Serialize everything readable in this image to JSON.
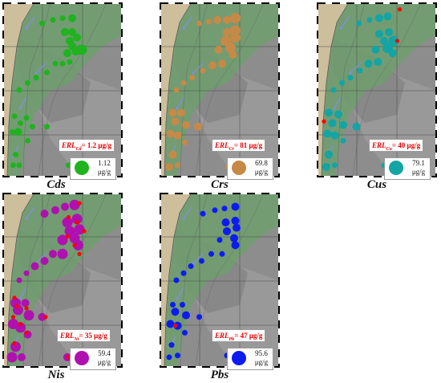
{
  "chart_data": [
    {
      "type": "scatter",
      "panel_label": "Cds",
      "erl_prefix": "ERL",
      "erl_sub": "Cd",
      "erl_value": "= 1.2 μg/g",
      "legend_value": "1.12",
      "legend_unit": "μg/g",
      "color": "#1fb31f",
      "exceed_color": "#ff0000",
      "points": [
        [
          0.58,
          0.09,
          2
        ],
        [
          0.5,
          0.09,
          1
        ],
        [
          0.42,
          0.1,
          1
        ],
        [
          0.33,
          0.12,
          1
        ],
        [
          0.58,
          0.17,
          2
        ],
        [
          0.52,
          0.17,
          2
        ],
        [
          0.62,
          0.2,
          2
        ],
        [
          0.56,
          0.22,
          2
        ],
        [
          0.58,
          0.25,
          2
        ],
        [
          0.66,
          0.27,
          3
        ],
        [
          0.54,
          0.29,
          2
        ],
        [
          0.61,
          0.28,
          2
        ],
        [
          0.5,
          0.35,
          1
        ],
        [
          0.56,
          0.34,
          1
        ],
        [
          0.44,
          0.35,
          1
        ],
        [
          0.37,
          0.4,
          1
        ],
        [
          0.28,
          0.43,
          1
        ],
        [
          0.21,
          0.46,
          1
        ],
        [
          0.14,
          0.5,
          1
        ],
        [
          0.1,
          0.65,
          1
        ],
        [
          0.2,
          0.66,
          1
        ],
        [
          0.15,
          0.69,
          1
        ],
        [
          0.25,
          0.71,
          1
        ],
        [
          0.37,
          0.71,
          1
        ],
        [
          0.08,
          0.74,
          1
        ],
        [
          0.13,
          0.74,
          2
        ],
        [
          0.21,
          0.79,
          1
        ],
        [
          0.11,
          0.87,
          1
        ],
        [
          0.09,
          0.93,
          1
        ],
        [
          0.14,
          0.93,
          1
        ],
        [
          0.55,
          0.93,
          1
        ]
      ]
    },
    {
      "type": "scatter",
      "panel_label": "Crs",
      "erl_prefix": "ERL",
      "erl_sub": "Cr",
      "erl_value": "= 81 μg/g",
      "legend_value": "69.8",
      "legend_unit": "μg/g",
      "color": "#c68946",
      "exceed_color": "#ff0000",
      "points": [
        [
          0.63,
          0.09,
          3
        ],
        [
          0.56,
          0.1,
          2
        ],
        [
          0.48,
          0.1,
          2
        ],
        [
          0.41,
          0.11,
          1
        ],
        [
          0.33,
          0.12,
          1
        ],
        [
          0.63,
          0.16,
          3
        ],
        [
          0.56,
          0.17,
          2
        ],
        [
          0.63,
          0.2,
          3
        ],
        [
          0.55,
          0.22,
          3
        ],
        [
          0.59,
          0.26,
          3
        ],
        [
          0.49,
          0.27,
          2
        ],
        [
          0.61,
          0.3,
          2
        ],
        [
          0.52,
          0.35,
          2
        ],
        [
          0.44,
          0.36,
          2
        ],
        [
          0.36,
          0.39,
          1
        ],
        [
          0.27,
          0.43,
          1
        ],
        [
          0.2,
          0.46,
          1
        ],
        [
          0.14,
          0.5,
          1
        ],
        [
          0.11,
          0.63,
          2
        ],
        [
          0.18,
          0.63,
          2
        ],
        [
          0.13,
          0.68,
          2
        ],
        [
          0.22,
          0.7,
          2
        ],
        [
          0.32,
          0.71,
          2
        ],
        [
          0.09,
          0.75,
          2
        ],
        [
          0.15,
          0.76,
          2
        ],
        [
          0.21,
          0.8,
          1
        ],
        [
          0.11,
          0.87,
          2
        ],
        [
          0.15,
          0.93,
          1
        ],
        [
          0.08,
          0.94,
          2
        ],
        [
          0.57,
          0.94,
          1
        ]
      ]
    },
    {
      "type": "scatter",
      "panel_label": "Cus",
      "erl_prefix": "ERL",
      "erl_sub": "Cu",
      "erl_value": "= 40 μg/g",
      "legend_value": "79.1",
      "legend_unit": "μg/g",
      "color": "#13a5a5",
      "exceed_color": "#ff0000",
      "points": [
        [
          0.59,
          0.08,
          2
        ],
        [
          0.52,
          0.09,
          2
        ],
        [
          0.44,
          0.1,
          1
        ],
        [
          0.35,
          0.12,
          1
        ],
        [
          0.6,
          0.17,
          2
        ],
        [
          0.52,
          0.18,
          2
        ],
        [
          0.64,
          0.22,
          3
        ],
        [
          0.56,
          0.22,
          2
        ],
        [
          0.59,
          0.26,
          3
        ],
        [
          0.49,
          0.27,
          2
        ],
        [
          0.63,
          0.29,
          2
        ],
        [
          0.51,
          0.34,
          2
        ],
        [
          0.43,
          0.35,
          2
        ],
        [
          0.36,
          0.39,
          1
        ],
        [
          0.28,
          0.43,
          1
        ],
        [
          0.21,
          0.46,
          1
        ],
        [
          0.14,
          0.5,
          1
        ],
        [
          0.1,
          0.63,
          2
        ],
        [
          0.18,
          0.64,
          2
        ],
        [
          0.13,
          0.69,
          2
        ],
        [
          0.22,
          0.7,
          2
        ],
        [
          0.33,
          0.71,
          2
        ],
        [
          0.09,
          0.75,
          2
        ],
        [
          0.15,
          0.76,
          2
        ],
        [
          0.22,
          0.79,
          1
        ],
        [
          0.1,
          0.87,
          2
        ],
        [
          0.15,
          0.93,
          1
        ],
        [
          0.08,
          0.94,
          2
        ],
        [
          0.56,
          0.93,
          1
        ]
      ],
      "exceed": [
        [
          0.69,
          0.04
        ],
        [
          0.67,
          0.22
        ],
        [
          0.06,
          0.68
        ]
      ]
    },
    {
      "type": "scatter",
      "panel_label": "Nis",
      "erl_prefix": "ERL",
      "erl_sub": "Ni",
      "erl_value": "= 35 μg/g",
      "legend_value": "59.4",
      "legend_unit": "μg/g",
      "color": "#b010b0",
      "exceed_color": "#ff0000",
      "points": [
        [
          0.6,
          0.07,
          3
        ],
        [
          0.52,
          0.08,
          2
        ],
        [
          0.44,
          0.1,
          2
        ],
        [
          0.35,
          0.12,
          2
        ],
        [
          0.62,
          0.15,
          3
        ],
        [
          0.54,
          0.17,
          3
        ],
        [
          0.64,
          0.21,
          3
        ],
        [
          0.56,
          0.22,
          3
        ],
        [
          0.6,
          0.26,
          3
        ],
        [
          0.5,
          0.27,
          3
        ],
        [
          0.63,
          0.3,
          3
        ],
        [
          0.5,
          0.35,
          3
        ],
        [
          0.42,
          0.35,
          2
        ],
        [
          0.35,
          0.39,
          2
        ],
        [
          0.27,
          0.42,
          2
        ],
        [
          0.2,
          0.46,
          1
        ],
        [
          0.14,
          0.5,
          1
        ],
        [
          0.11,
          0.63,
          3
        ],
        [
          0.19,
          0.63,
          2
        ],
        [
          0.13,
          0.67,
          3
        ],
        [
          0.22,
          0.7,
          3
        ],
        [
          0.33,
          0.71,
          2
        ],
        [
          0.09,
          0.75,
          3
        ],
        [
          0.15,
          0.77,
          3
        ],
        [
          0.21,
          0.81,
          2
        ],
        [
          0.11,
          0.88,
          3
        ],
        [
          0.16,
          0.94,
          2
        ],
        [
          0.08,
          0.94,
          3
        ],
        [
          0.54,
          0.94,
          2
        ]
      ],
      "exceed": [
        [
          0.64,
          0.06
        ],
        [
          0.55,
          0.14
        ],
        [
          0.62,
          0.17
        ],
        [
          0.68,
          0.22
        ],
        [
          0.54,
          0.25
        ],
        [
          0.6,
          0.3
        ],
        [
          0.64,
          0.35
        ],
        [
          0.1,
          0.6
        ],
        [
          0.12,
          0.65
        ],
        [
          0.2,
          0.66
        ],
        [
          0.09,
          0.71
        ],
        [
          0.15,
          0.75
        ],
        [
          0.36,
          0.71
        ],
        [
          0.2,
          0.8
        ],
        [
          0.1,
          0.86
        ],
        [
          0.55,
          0.94
        ]
      ]
    },
    {
      "type": "scatter",
      "panel_label": "Pbs",
      "erl_prefix": "ERL",
      "erl_sub": "Pb",
      "erl_value": "= 47 μg/g",
      "legend_value": "95.6",
      "legend_unit": "μg/g",
      "color": "#0c1cf0",
      "exceed_color": "#ff0000",
      "points": [
        [
          0.63,
          0.08,
          2
        ],
        [
          0.54,
          0.09,
          1
        ],
        [
          0.46,
          0.1,
          1
        ],
        [
          0.36,
          0.12,
          1
        ],
        [
          0.63,
          0.16,
          2
        ],
        [
          0.55,
          0.17,
          2
        ],
        [
          0.64,
          0.2,
          2
        ],
        [
          0.56,
          0.22,
          2
        ],
        [
          0.62,
          0.26,
          2
        ],
        [
          0.5,
          0.27,
          1
        ],
        [
          0.63,
          0.3,
          2
        ],
        [
          0.52,
          0.35,
          1
        ],
        [
          0.43,
          0.35,
          1
        ],
        [
          0.35,
          0.39,
          1
        ],
        [
          0.26,
          0.42,
          1
        ],
        [
          0.2,
          0.46,
          1
        ],
        [
          0.14,
          0.5,
          1
        ],
        [
          0.11,
          0.64,
          1
        ],
        [
          0.19,
          0.64,
          1
        ],
        [
          0.13,
          0.68,
          2
        ],
        [
          0.22,
          0.7,
          2
        ],
        [
          0.33,
          0.71,
          1
        ],
        [
          0.09,
          0.75,
          2
        ],
        [
          0.15,
          0.76,
          2
        ],
        [
          0.21,
          0.8,
          1
        ],
        [
          0.1,
          0.87,
          1
        ],
        [
          0.15,
          0.93,
          1
        ],
        [
          0.08,
          0.94,
          1
        ],
        [
          0.56,
          0.93,
          1
        ]
      ],
      "exceed": [
        [
          0.13,
          0.76
        ]
      ]
    }
  ]
}
